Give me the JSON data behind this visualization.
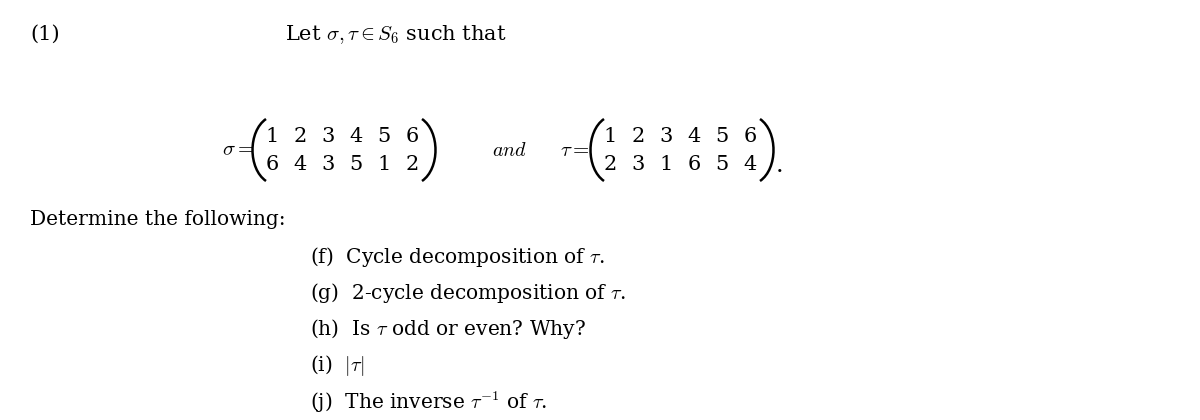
{
  "bg_color": "#ffffff",
  "text_color": "#000000",
  "fig_width": 12.0,
  "fig_height": 4.2,
  "label_1": "(1)",
  "intro_text": "Let $\\sigma, \\tau \\in S_6$ such that",
  "sigma_top_vals": [
    "1",
    "2",
    "3",
    "4",
    "5",
    "6"
  ],
  "sigma_bot_vals": [
    "6",
    "4",
    "3",
    "5",
    "1",
    "2"
  ],
  "tau_top_vals": [
    "1",
    "2",
    "3",
    "4",
    "5",
    "6"
  ],
  "tau_bot_vals": [
    "2",
    "3",
    "1",
    "6",
    "5",
    "4"
  ],
  "determine_text": "Determine the following:",
  "items": [
    "(f)  Cycle decomposition of $\\tau$.",
    "(g)  2-cycle decomposition of $\\tau$.",
    "(h)  Is $\\tau$ odd or even? Why?",
    "(i)  $|\\tau|$",
    "(j)  The inverse $\\tau^{-1}$ of $\\tau$."
  ],
  "sigma_matrix_latex": "$\\sigma = \\left(\\begin{array}{cccccc} 1 & 2 & 3 & 4 & 5 & 6\\\\ 6 & 4 & 3 & 5 & 1 & 2 \\end{array}\\right)$",
  "tau_matrix_latex": "$\\tau = \\left(\\begin{array}{cccccc} 1 & 2 & 3 & 4 & 5 & 6\\\\ 2 & 3 & 1 & 6 & 5 & 4 \\end{array}\\right)$"
}
